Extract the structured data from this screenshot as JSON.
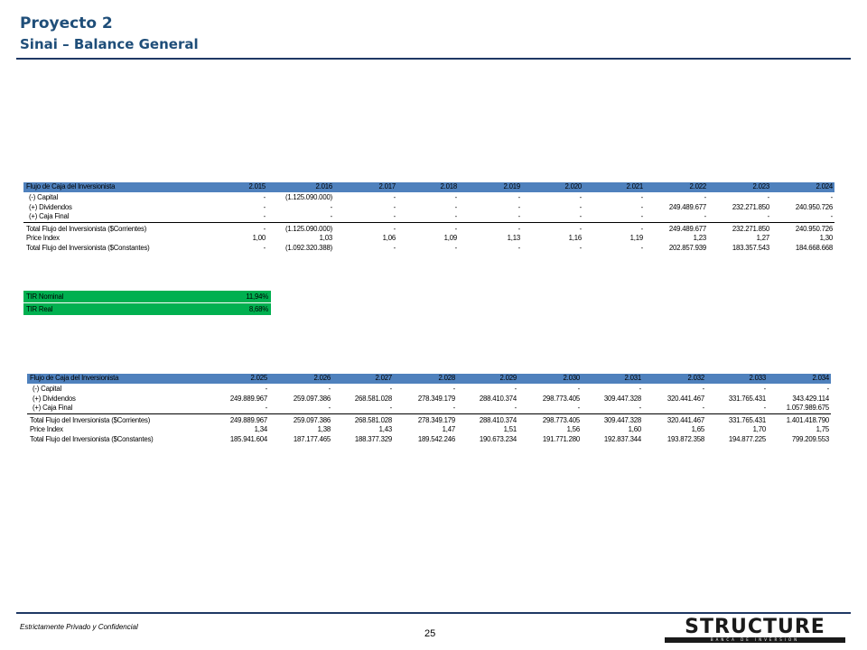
{
  "header": {
    "title": "Proyecto 2",
    "subtitle": "Sinai – Balance General"
  },
  "table1": {
    "header": [
      "Flujo de Caja del Inversionista",
      "2.015",
      "2.016",
      "2.017",
      "2.018",
      "2.019",
      "2.020",
      "2.021",
      "2.022",
      "2.023",
      "2.024"
    ],
    "rows": [
      {
        "label": "(-) Capital",
        "values": [
          "-",
          "(1.125.090.000)",
          "-",
          "-",
          "-",
          "-",
          "-",
          "-",
          "-",
          "-"
        ]
      },
      {
        "label": "(+) Dividendos",
        "values": [
          "-",
          "-",
          "-",
          "-",
          "-",
          "-",
          "-",
          "249.489.677",
          "232.271.850",
          "240.950.726"
        ]
      },
      {
        "label": "(+) Caja Final",
        "values": [
          "-",
          "-",
          "-",
          "-",
          "-",
          "-",
          "-",
          "-",
          "-",
          "-"
        ]
      },
      {
        "label": "Total Flujo del Inversionista ($Corrientes)",
        "values": [
          "-",
          "(1.125.090.000)",
          "-",
          "-",
          "-",
          "-",
          "-",
          "249.489.677",
          "232.271.850",
          "240.950.726"
        ]
      },
      {
        "label": "Price Index",
        "values": [
          "1,00",
          "1,03",
          "1,06",
          "1,09",
          "1,13",
          "1,16",
          "1,19",
          "1,23",
          "1,27",
          "1,30"
        ]
      },
      {
        "label": "Total Flujo del Inversionista ($Constantes)",
        "values": [
          "-",
          "(1.092.320.388)",
          "-",
          "-",
          "-",
          "-",
          "-",
          "202.857.939",
          "183.357.543",
          "184.668.668"
        ]
      }
    ]
  },
  "tir": {
    "nominal_label": "TIR Nominal",
    "nominal_value": "11,94%",
    "real_label": "TIR Real",
    "real_value": "8,68%"
  },
  "table2": {
    "header": [
      "Flujo de Caja del Inversionista",
      "2.025",
      "2.026",
      "2.027",
      "2.028",
      "2.029",
      "2.030",
      "2.031",
      "2.032",
      "2.033",
      "2.034"
    ],
    "rows": [
      {
        "label": "(-) Capital",
        "values": [
          "-",
          "-",
          "-",
          "-",
          "-",
          "-",
          "-",
          "-",
          "-",
          "-"
        ]
      },
      {
        "label": "(+) Dividendos",
        "values": [
          "249.889.967",
          "259.097.386",
          "268.581.028",
          "278.349.179",
          "288.410.374",
          "298.773.405",
          "309.447.328",
          "320.441.467",
          "331.765.431",
          "343.429.114"
        ]
      },
      {
        "label": "(+) Caja Final",
        "values": [
          "-",
          "-",
          "-",
          "-",
          "-",
          "-",
          "-",
          "-",
          "-",
          "1.057.989.675"
        ]
      },
      {
        "label": "Total Flujo del Inversionista ($Corrientes)",
        "values": [
          "249.889.967",
          "259.097.386",
          "268.581.028",
          "278.349.179",
          "288.410.374",
          "298.773.405",
          "309.447.328",
          "320.441.467",
          "331.765.431",
          "1.401.418.790"
        ]
      },
      {
        "label": "Price Index",
        "values": [
          "1,34",
          "1,38",
          "1,43",
          "1,47",
          "1,51",
          "1,56",
          "1,60",
          "1,65",
          "1,70",
          "1,75"
        ]
      },
      {
        "label": "Total Flujo del Inversionista ($Constantes)",
        "values": [
          "185.941.604",
          "187.177.465",
          "188.377.329",
          "189.542.246",
          "190.673.234",
          "191.771.280",
          "192.837.344",
          "193.872.358",
          "194.877.225",
          "799.209.553"
        ]
      }
    ]
  },
  "footer": {
    "note": "Estrictamente Privado y Confidencial",
    "page": "25",
    "logo_text": "STRUCTURE",
    "logo_tagline": "BANCA DE INVERSION"
  },
  "colors": {
    "title": "#1f4e79",
    "table_header": "#4f81bd",
    "tir_box": "#00b050",
    "rule": "#1f3864"
  }
}
